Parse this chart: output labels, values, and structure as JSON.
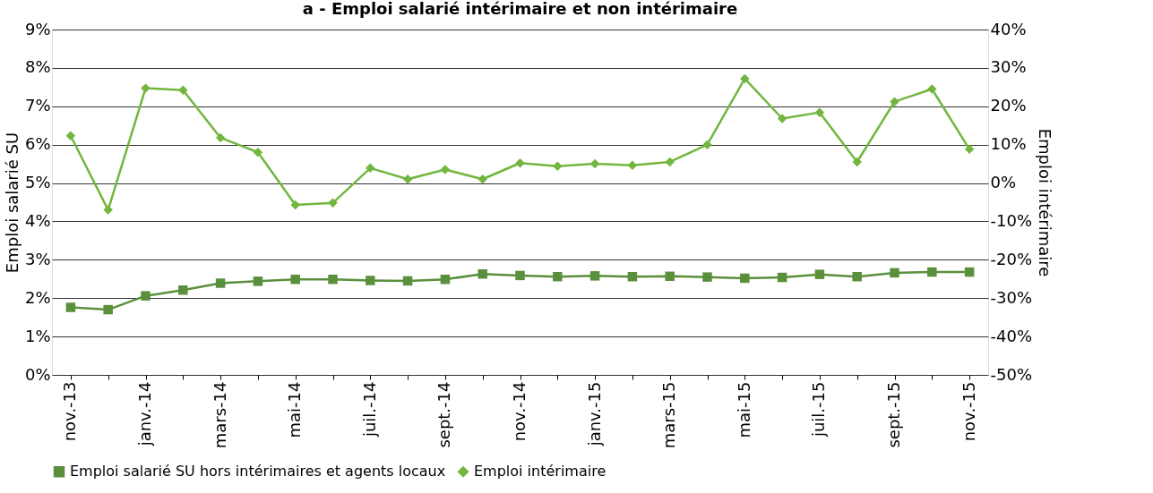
{
  "chart_data": {
    "type": "line",
    "title": "a - Emploi salarié intérimaire et non intérimaire",
    "ylabel": "Emploi salarié SU",
    "y2label": "Emploi intérimaire",
    "categories": [
      "nov.-13",
      null,
      "janv.-14",
      null,
      "mars-14",
      null,
      "mai-14",
      null,
      "juil.-14",
      null,
      "sept.-14",
      null,
      "nov.-14",
      null,
      "janv.-15",
      null,
      "mars-15",
      null,
      "mai-15",
      null,
      "juil.-15",
      null,
      "sept.-15",
      null,
      "nov.-15"
    ],
    "series": [
      {
        "name": "Emploi salarié SU hors intérimaires et agents locaux",
        "color": "#5a8f3c",
        "marker": "square",
        "values": [
          1.76,
          1.7,
          2.06,
          2.21,
          2.39,
          2.44,
          2.49,
          2.49,
          2.46,
          2.45,
          2.49,
          2.63,
          2.59,
          2.56,
          2.58,
          2.56,
          2.57,
          2.55,
          2.52,
          2.54,
          2.62,
          2.56,
          2.66,
          2.68,
          2.68
        ]
      },
      {
        "name": "Emploi intérimaire",
        "color": "#72b63f",
        "marker": "diamond",
        "axis": "y2",
        "values": [
          12.3,
          -7.0,
          24.7,
          24.2,
          11.8,
          8.0,
          -5.7,
          -5.2,
          3.9,
          1.0,
          3.5,
          1.0,
          5.2,
          4.4,
          5.0,
          4.6,
          5.5,
          10.0,
          27.2,
          16.8,
          18.4,
          5.5,
          21.2,
          24.5,
          8.8
        ]
      }
    ],
    "ylim": [
      0,
      9
    ],
    "yticks": [
      {
        "value": 0,
        "label": "0%"
      },
      {
        "value": 1,
        "label": "1%"
      },
      {
        "value": 2,
        "label": "2%"
      },
      {
        "value": 3,
        "label": "3%"
      },
      {
        "value": 4,
        "label": "4%"
      },
      {
        "value": 5,
        "label": "5%"
      },
      {
        "value": 6,
        "label": "6%"
      },
      {
        "value": 7,
        "label": "7%"
      },
      {
        "value": 8,
        "label": "8%"
      },
      {
        "value": 9,
        "label": "9%"
      }
    ],
    "y2lim": [
      -50,
      40
    ],
    "y2ticks": [
      {
        "value": -50,
        "label": "-50%"
      },
      {
        "value": -40,
        "label": "-40%"
      },
      {
        "value": -30,
        "label": "-30%"
      },
      {
        "value": -20,
        "label": "-20%"
      },
      {
        "value": -10,
        "label": "-10%"
      },
      {
        "value": 0,
        "label": "0%"
      },
      {
        "value": 10,
        "label": "10%"
      },
      {
        "value": 20,
        "label": "20%"
      },
      {
        "value": 30,
        "label": "30%"
      },
      {
        "value": 40,
        "label": "40%"
      }
    ],
    "grid": "y",
    "legend": "bottom",
    "line_style": "solid"
  }
}
